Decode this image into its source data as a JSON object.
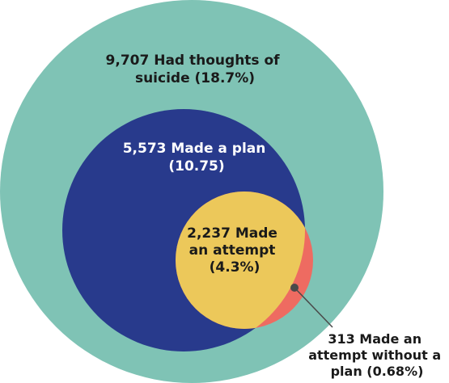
{
  "diagram": {
    "colors": {
      "background": "#ffffff",
      "thoughts": "#7fc3b5",
      "plan": "#283a8c",
      "attempt": "#ecc85a",
      "attempt_without_plan": "#ee6b61",
      "leader": "#4a4a4a"
    },
    "sets": [
      {
        "key": "thoughts",
        "label_lines": [
          "9,707 Had thoughts of",
          "suicide (18.7%)"
        ],
        "count": 9707,
        "percent": 18.7
      },
      {
        "key": "plan",
        "label_lines": [
          "5,573 Made a plan",
          "(10.75)"
        ],
        "count": 5573,
        "percent": 10.75
      },
      {
        "key": "attempt",
        "label_lines": [
          "2,237 Made",
          "an attempt",
          "(4.3%)"
        ],
        "count": 2237,
        "percent": 4.3
      },
      {
        "key": "attempt_without_plan",
        "label_lines": [
          "313 Made an",
          "attempt without a",
          "plan (0.68%)"
        ],
        "count": 313,
        "percent": 0.68
      }
    ]
  }
}
